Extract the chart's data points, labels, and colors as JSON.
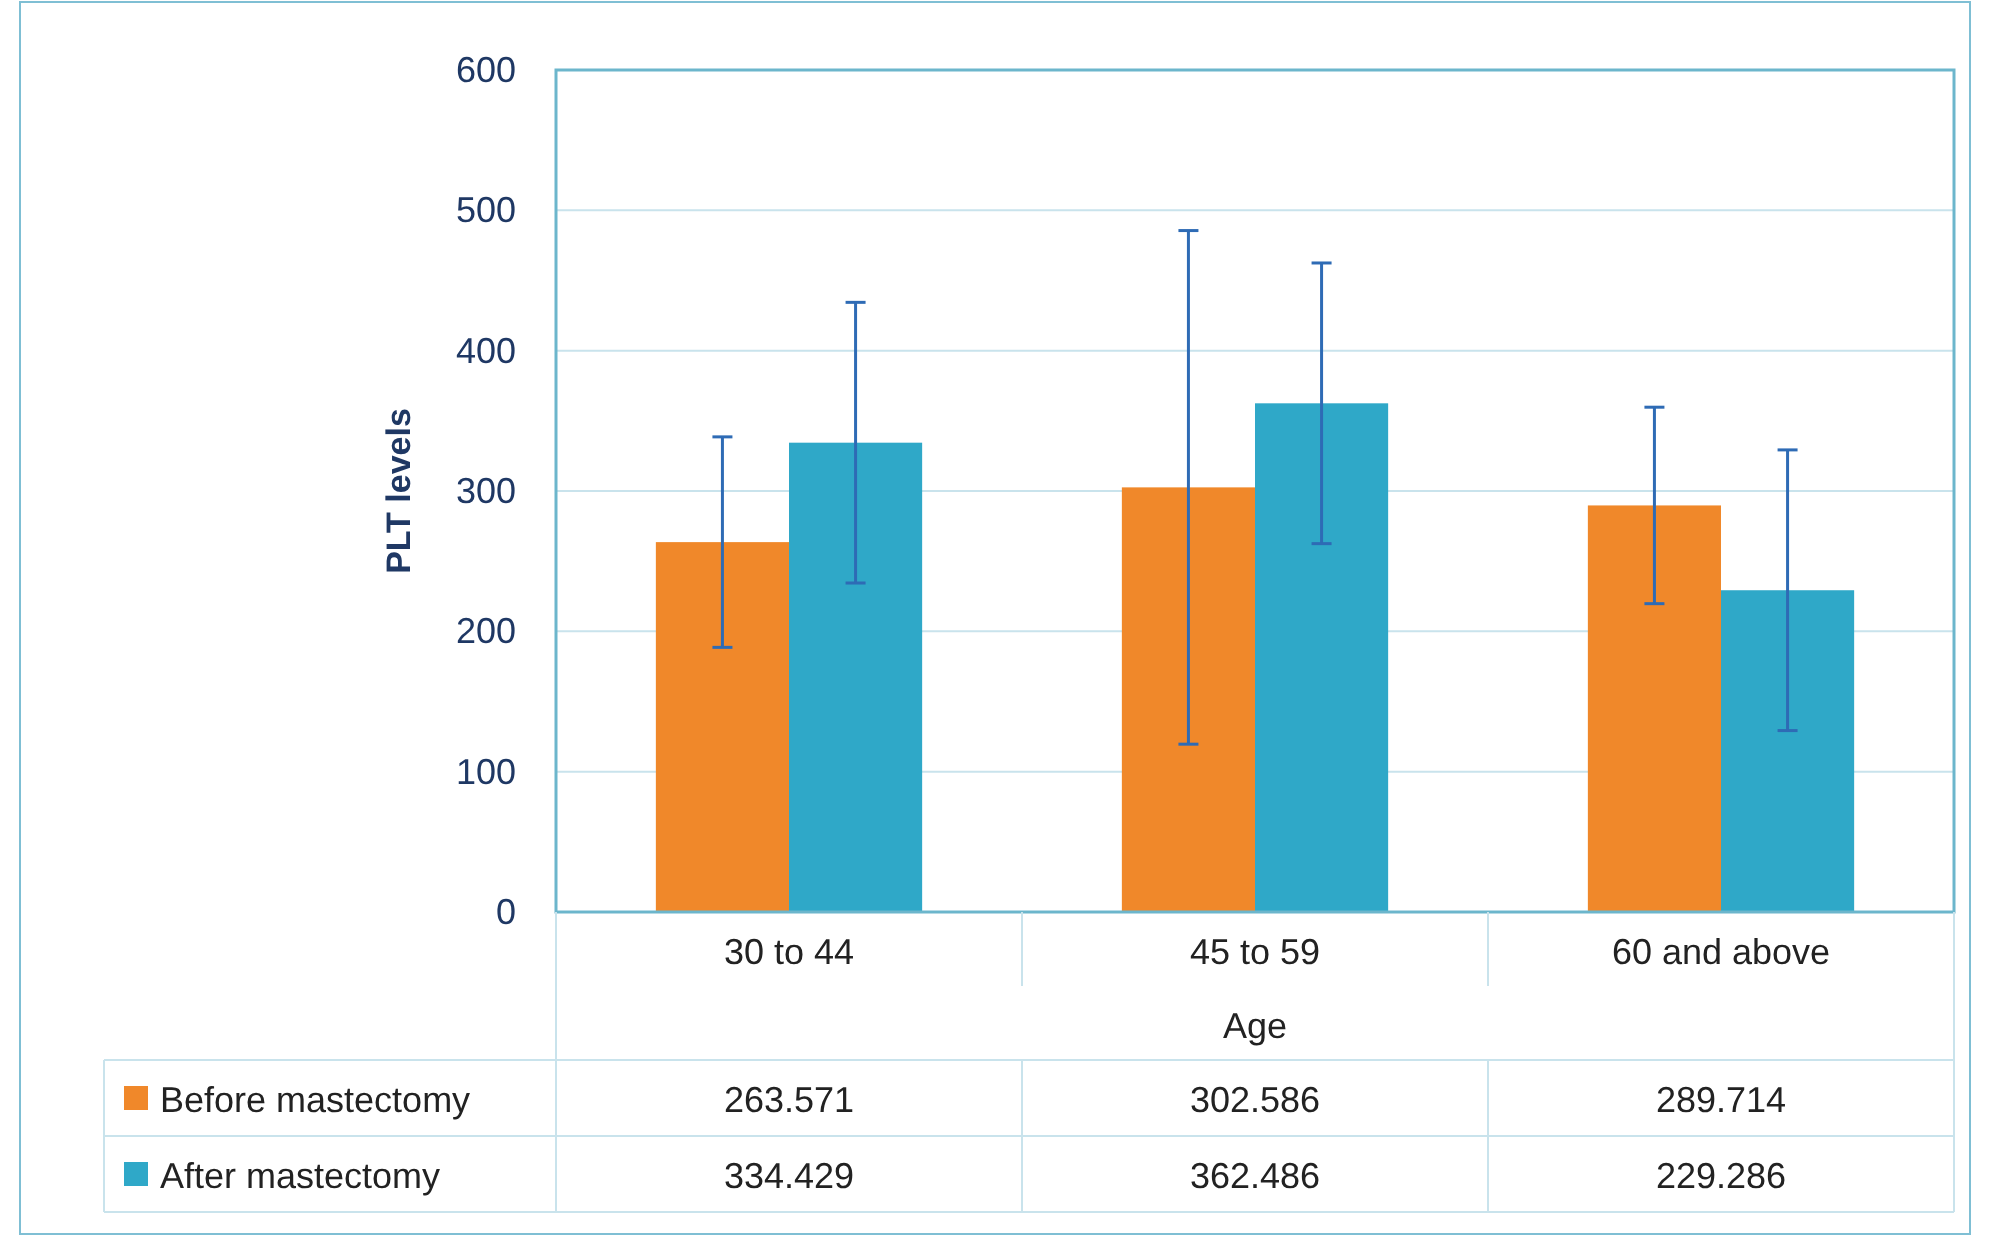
{
  "chart_data": {
    "type": "bar",
    "xlabel": "Age",
    "ylabel": "PLT levels",
    "categories": [
      "30 to 44",
      "45 to 59",
      "60 and above"
    ],
    "series": [
      {
        "name": "Before mastectomy",
        "color": "#f0882a",
        "values": [
          263.571,
          302.586,
          289.714
        ],
        "errors": [
          75,
          183,
          70
        ]
      },
      {
        "name": "After mastectomy",
        "color": "#2fa8c8",
        "values": [
          334.429,
          362.486,
          229.286
        ],
        "errors": [
          100,
          100,
          100
        ]
      }
    ],
    "ylim": [
      0,
      600
    ],
    "yticks": [
      0,
      100,
      200,
      300,
      400,
      500,
      600
    ],
    "grid": "y",
    "legend": "bottom",
    "data_labels": true
  }
}
